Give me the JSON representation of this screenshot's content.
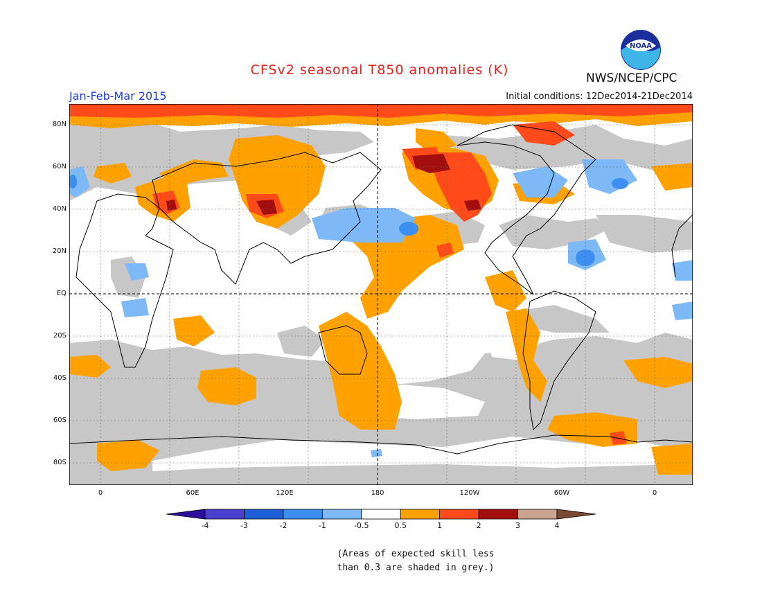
{
  "title": "CFSv2 seasonal T850 anomalies (K)",
  "agency": "NWS/NCEP/CPC",
  "logo_text": "NOAA",
  "period": "Jan-Feb-Mar 2015",
  "initial_conditions": "Initial conditions: 12Dec2014-21Dec2014",
  "lat_labels": [
    "80N",
    "60N",
    "40N",
    "20N",
    "EQ",
    "20S",
    "40S",
    "60S",
    "80S"
  ],
  "lon_labels": [
    "0",
    "60E",
    "120E",
    "180",
    "120W",
    "60W",
    "0"
  ],
  "colorbar": {
    "labels": [
      "-4",
      "-3",
      "-2",
      "-1",
      "-0.5",
      "0.5",
      "1",
      "2",
      "3",
      "4"
    ],
    "colors": [
      "#2b0e9a",
      "#4a3fcf",
      "#1e5fd6",
      "#3c8ef0",
      "#7cb9f6",
      "#ffffff",
      "#ffa200",
      "#ff4a1a",
      "#a30e0e",
      "#c9a491",
      "#7a4a34"
    ]
  },
  "note_line1": "(Areas of expected skill less",
  "note_line2": "than 0.3 are shaded in grey.)",
  "colors": {
    "grey_mask": "#c7c7c7",
    "title": "#e8201a",
    "period": "#1f3ee0"
  }
}
